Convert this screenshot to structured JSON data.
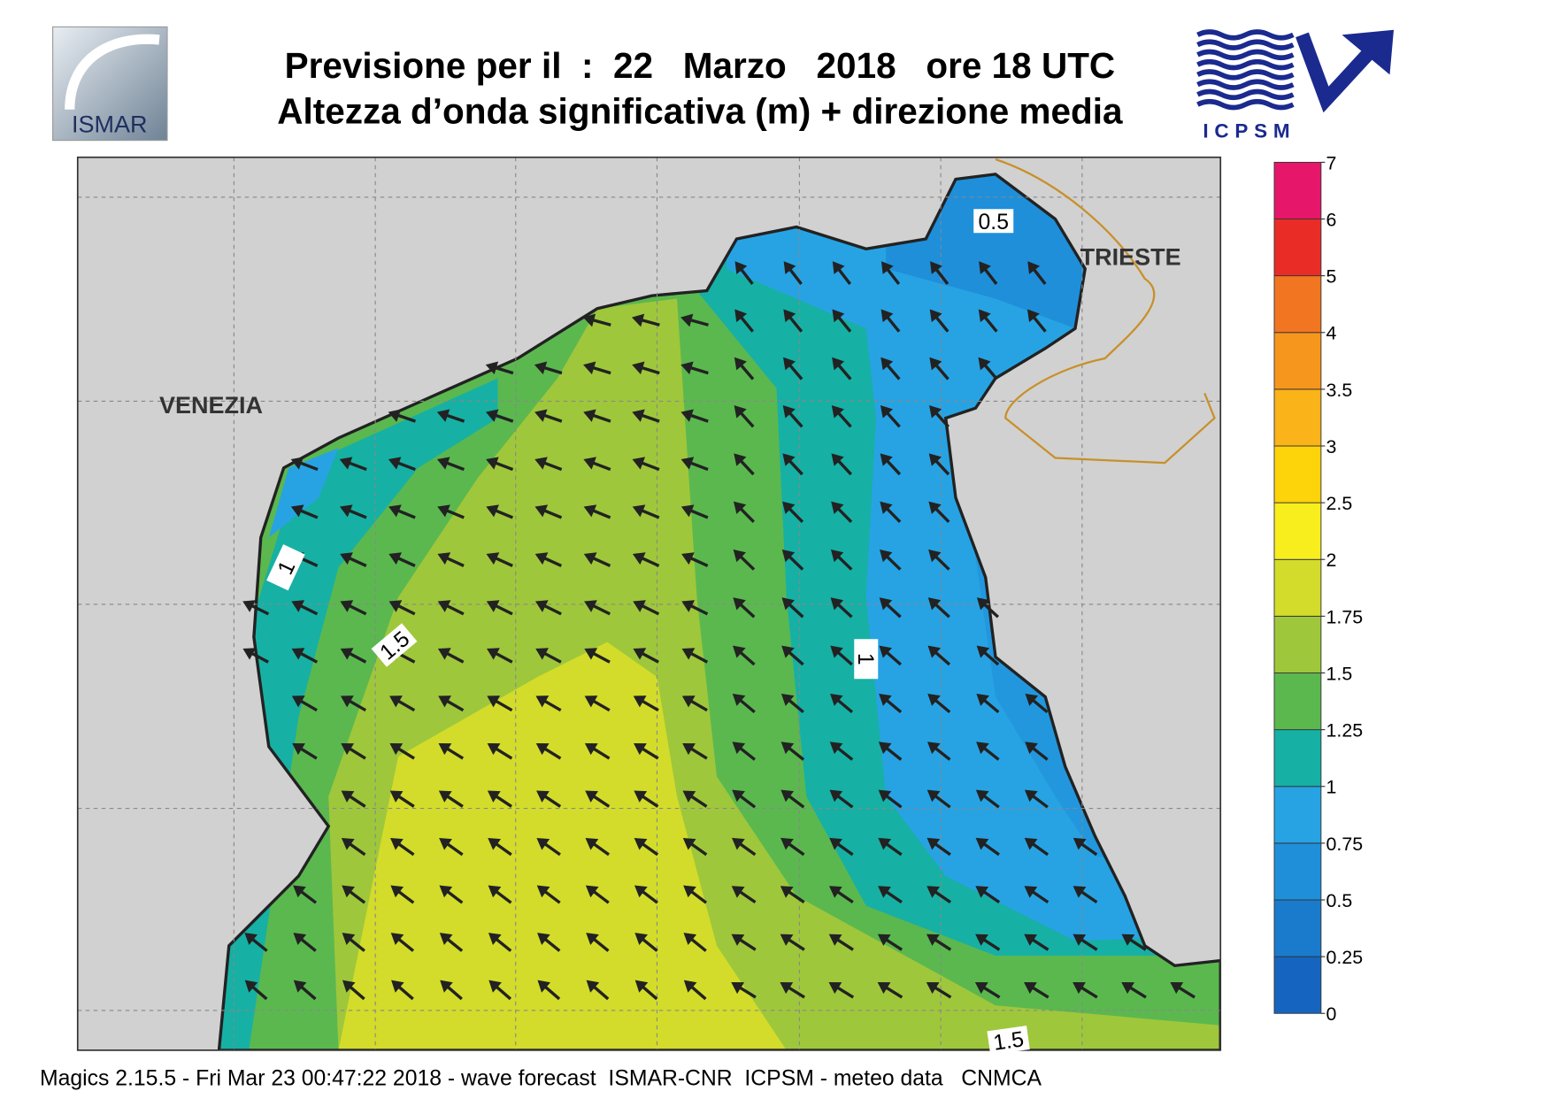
{
  "header": {
    "title_line1": "Previsione per il  :  22   Marzo   2018   ore 18 UTC",
    "title_line2": "Altezza d’onda significativa (m) + direzione media",
    "logo_left": "ISMAR",
    "logo_right": "ICPSM"
  },
  "map": {
    "places": [
      "VENEZIA",
      "TRIESTE"
    ],
    "contour_labels": [
      "0.5",
      "1",
      "1.5",
      "1",
      "1.5"
    ]
  },
  "colorbar": {
    "levels": [
      0,
      0.25,
      0.5,
      0.75,
      1,
      1.25,
      1.5,
      1.75,
      2,
      2.5,
      3,
      3.5,
      4,
      5,
      6,
      7
    ],
    "colors": [
      "#1565c0",
      "#1a7bcc",
      "#1f8fda",
      "#27a3e4",
      "#17b0a4",
      "#5bb84f",
      "#9fc73b",
      "#d3dc2a",
      "#f8ee1e",
      "#fdd30a",
      "#fab318",
      "#f7961c",
      "#f27622",
      "#ea2c26",
      "#e6166b"
    ]
  },
  "footer": "Magics 2.15.5 - Fri Mar 23 00:47:22 2018 - wave forecast  ISMAR-CNR  ICPSM - meteo data   CNMCA"
}
